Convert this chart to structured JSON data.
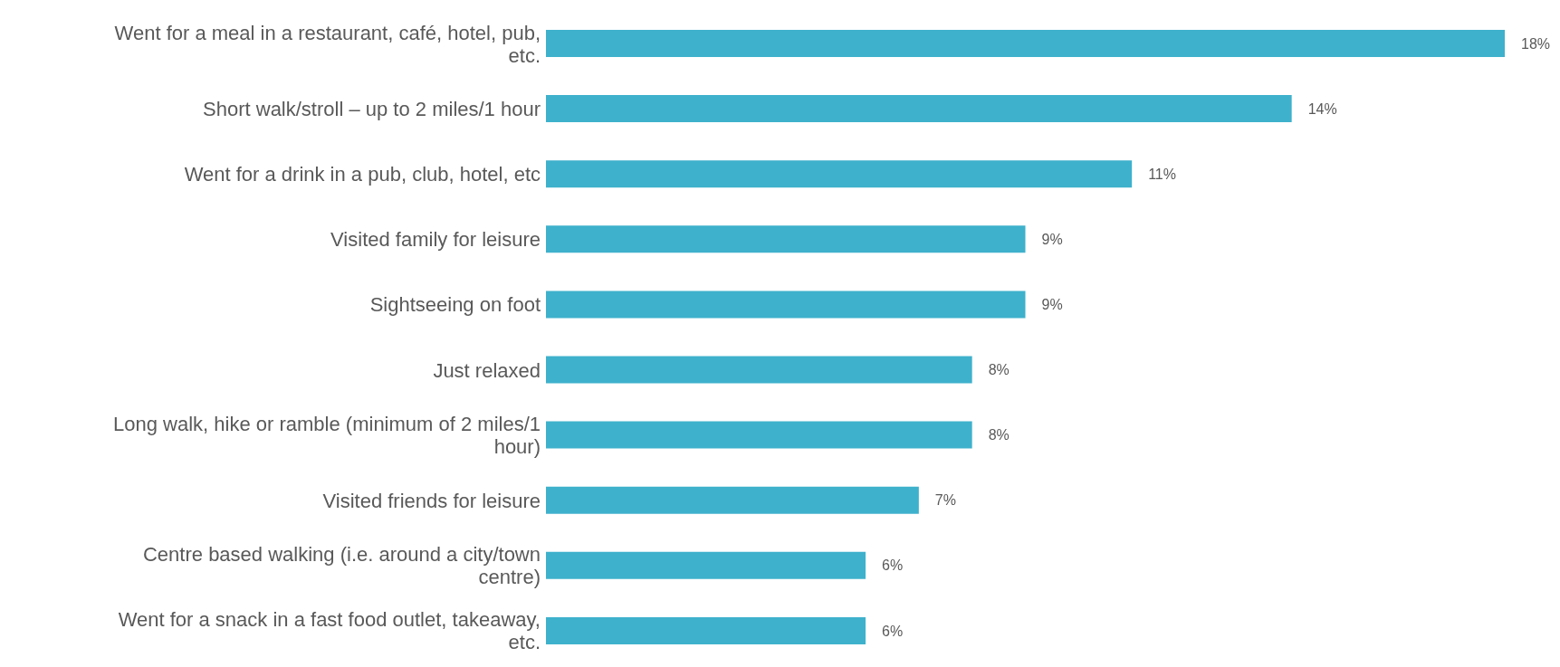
{
  "chart_data": {
    "type": "bar",
    "orientation": "horizontal",
    "categories": [
      "Went for a meal in a restaurant, café, hotel, pub, etc.",
      "Short walk/stroll – up to 2 miles/1 hour",
      "Went for a drink in a pub, club, hotel, etc",
      "Visited family for leisure",
      "Sightseeing on foot",
      "Just relaxed",
      "Long walk, hike or ramble (minimum of 2 miles/1 hour)",
      "Visited friends for leisure",
      "Centre based walking (i.e. around a city/town centre)",
      "Went for a snack in a fast food outlet, takeaway, etc."
    ],
    "values": [
      18,
      14,
      11,
      9,
      9,
      8,
      8,
      7,
      6,
      6
    ],
    "value_labels": [
      "18%",
      "14%",
      "11%",
      "9%",
      "9%",
      "8%",
      "8%",
      "7%",
      "6%",
      "6%"
    ],
    "color": "#3eb1cc",
    "grid": false,
    "legend": false
  }
}
